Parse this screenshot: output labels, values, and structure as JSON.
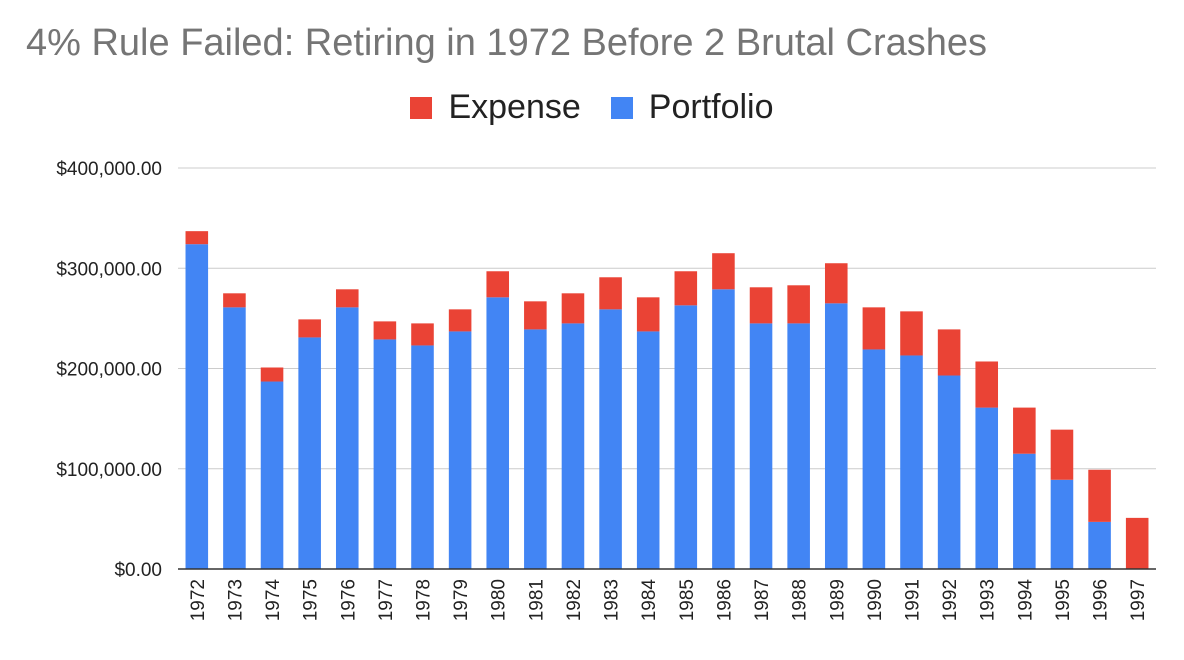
{
  "colors": {
    "expense": "#ea4335",
    "portfolio": "#4285f4",
    "grid": "#cccccc",
    "axis": "#333333"
  },
  "chart_data": {
    "type": "bar",
    "stacked": true,
    "title": "4% Rule Failed: Retiring in 1972 Before 2 Brutal Crashes",
    "xlabel": "",
    "ylabel": "",
    "ylim": [
      0,
      400000
    ],
    "yticks": [
      0,
      100000,
      200000,
      300000,
      400000
    ],
    "ytick_labels": [
      "$0.00",
      "$100,000.00",
      "$200,000.00",
      "$300,000.00",
      "$400,000.00"
    ],
    "legend_position": "top-center",
    "categories": [
      "1972",
      "1973",
      "1974",
      "1975",
      "1976",
      "1977",
      "1978",
      "1979",
      "1980",
      "1981",
      "1982",
      "1983",
      "1984",
      "1985",
      "1986",
      "1987",
      "1988",
      "1989",
      "1990",
      "1991",
      "1992",
      "1993",
      "1994",
      "1995",
      "1996",
      "1997"
    ],
    "series": [
      {
        "name": "Portfolio",
        "color": "#4285f4",
        "values": [
          324000,
          261000,
          187000,
          231000,
          261000,
          229000,
          223000,
          237000,
          271000,
          239000,
          245000,
          259000,
          237000,
          263000,
          279000,
          245000,
          245000,
          265000,
          219000,
          213000,
          193000,
          161000,
          115000,
          89000,
          47000,
          0
        ]
      },
      {
        "name": "Expense",
        "color": "#ea4335",
        "values": [
          13000,
          14000,
          14000,
          18000,
          18000,
          18000,
          22000,
          22000,
          26000,
          28000,
          30000,
          32000,
          34000,
          34000,
          36000,
          36000,
          38000,
          40000,
          42000,
          44000,
          46000,
          46000,
          46000,
          50000,
          52000,
          51000
        ]
      }
    ]
  }
}
